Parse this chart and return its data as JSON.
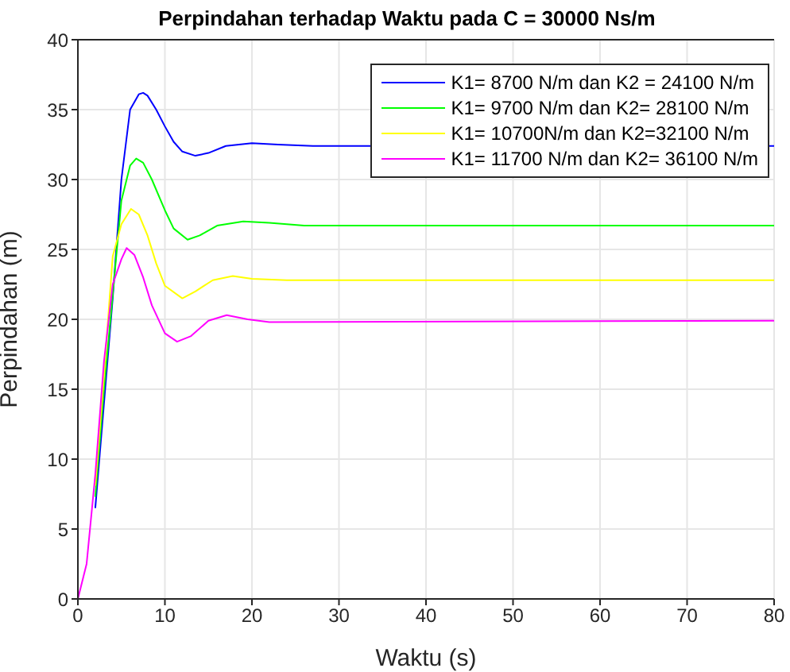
{
  "chart_data": {
    "type": "line",
    "title": "Perpindahan terhadap Waktu pada C = 30000 Ns/m",
    "xlabel": "Waktu (s)",
    "ylabel": "Perpindahan (m)",
    "xlim": [
      0,
      80
    ],
    "xticks": [
      0,
      10,
      20,
      30,
      40,
      50,
      60,
      70,
      80
    ],
    "ylim": [
      0,
      40
    ],
    "yticks": [
      0,
      5,
      10,
      15,
      20,
      25,
      30,
      35,
      40
    ],
    "grid": true,
    "legend": "top right",
    "marker": "none",
    "line_style": "solid",
    "series": [
      {
        "name": "K1= 8700 N/m dan K2 = 24100 N/m",
        "color": "#0000ff",
        "x": [
          2,
          3,
          4,
          5,
          6,
          7,
          7.5,
          8,
          9,
          10,
          11,
          12,
          13.5,
          15,
          17,
          20,
          23,
          27,
          80
        ],
        "values": [
          6.5,
          14,
          21.5,
          30,
          35,
          36.1,
          36.2,
          36,
          35,
          33.8,
          32.7,
          32,
          31.7,
          31.9,
          32.4,
          32.6,
          32.5,
          32.4,
          32.4
        ]
      },
      {
        "name": "K1= 9700 N/m dan K2= 28100 N/m",
        "color": "#00ff00",
        "x": [
          2,
          3,
          5,
          6,
          6.7,
          7.5,
          8.5,
          10,
          11,
          12.6,
          14,
          16,
          19,
          22,
          26,
          80
        ],
        "values": [
          7.3,
          15,
          28.5,
          31,
          31.5,
          31.2,
          30,
          27.8,
          26.5,
          25.7,
          26,
          26.7,
          27,
          26.9,
          26.7,
          26.7
        ]
      },
      {
        "name": "K1= 10700N/m dan K2=32100 N/m",
        "color": "#ffff00",
        "x": [
          2,
          3,
          4,
          5,
          6.1,
          7,
          8,
          9,
          10,
          12,
          13.5,
          15.5,
          17.8,
          20,
          24,
          80
        ],
        "values": [
          8.1,
          16,
          24.5,
          26.8,
          27.9,
          27.5,
          26,
          24,
          22.4,
          21.5,
          22,
          22.8,
          23.1,
          22.9,
          22.8,
          22.8
        ]
      },
      {
        "name": "K1= 11700 N/m dan K2= 36100 N/m",
        "color": "#ff00ff",
        "x": [
          0,
          1,
          2,
          3,
          4,
          5,
          5.6,
          6.5,
          7.5,
          8.5,
          10,
          11.4,
          13,
          15,
          17.1,
          19.5,
          22,
          80
        ],
        "values": [
          0,
          2.5,
          8.9,
          17,
          22.5,
          24.3,
          25.1,
          24.6,
          23,
          21,
          19,
          18.4,
          18.8,
          19.9,
          20.3,
          20,
          19.8,
          19.9
        ]
      }
    ]
  }
}
